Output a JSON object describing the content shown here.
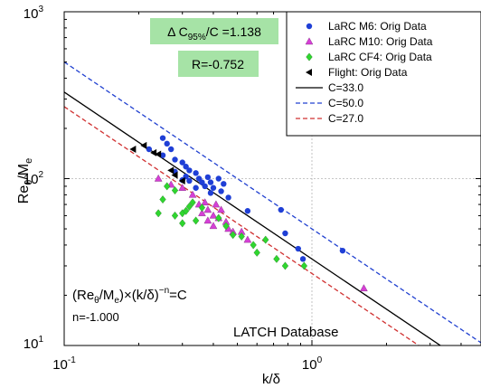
{
  "chart_data": {
    "type": "scatter",
    "xlabel": "k/δ",
    "ylabel_main": "Re",
    "ylabel_sub1": "θ",
    "ylabel_mid": "/M",
    "ylabel_sub2": "e",
    "xscale": "log",
    "yscale": "log",
    "xlim": [
      0.1,
      5.0
    ],
    "ylim": [
      10,
      1000
    ],
    "grid": true,
    "legend_position": "top-right",
    "x_ticks": [
      {
        "base": "10",
        "exp": "-1",
        "value": 0.1
      },
      {
        "base": "10",
        "exp": "0",
        "value": 1
      }
    ],
    "y_ticks": [
      {
        "base": "10",
        "exp": "1",
        "value": 10
      },
      {
        "base": "10",
        "exp": "2",
        "value": 100
      },
      {
        "base": "10",
        "exp": "3",
        "value": 1000
      }
    ],
    "annotations": {
      "delta_c": {
        "prefix": "Δ C",
        "sub": "95%",
        "suffix": "/C =1.138",
        "background": "#a6e3a6"
      },
      "r_value": {
        "text": "R=-0.752",
        "background": "#a6e3a6"
      },
      "formula": {
        "p1": "(Re",
        "s1": "θ",
        "p2": "/M",
        "s2": "e",
        "p3": ")×(k/δ)",
        "sup": "−n",
        "p4": "=C"
      },
      "n_value": "n=-1.000",
      "database": "LATCH Database"
    },
    "series": [
      {
        "name": "LaRC M6: Orig Data",
        "marker": "circle",
        "color": "#1f3fd6",
        "points": [
          [
            0.25,
            175
          ],
          [
            0.26,
            162
          ],
          [
            0.27,
            150
          ],
          [
            0.22,
            150
          ],
          [
            0.25,
            138
          ],
          [
            0.28,
            130
          ],
          [
            0.3,
            125
          ],
          [
            0.31,
            118
          ],
          [
            0.32,
            112
          ],
          [
            0.28,
            110
          ],
          [
            0.31,
            103
          ],
          [
            0.32,
            97
          ],
          [
            0.34,
            108
          ],
          [
            0.35,
            100
          ],
          [
            0.36,
            95
          ],
          [
            0.38,
            102
          ],
          [
            0.37,
            90
          ],
          [
            0.39,
            95
          ],
          [
            0.4,
            88
          ],
          [
            0.42,
            100
          ],
          [
            0.44,
            93
          ],
          [
            0.39,
            82
          ],
          [
            0.43,
            84
          ],
          [
            0.46,
            77
          ],
          [
            0.55,
            64
          ],
          [
            0.75,
            65
          ],
          [
            0.78,
            47
          ],
          [
            0.88,
            38
          ],
          [
            0.92,
            33
          ],
          [
            1.33,
            37
          ],
          [
            0.3,
            98
          ],
          [
            0.34,
            88
          ]
        ]
      },
      {
        "name": "LaRC M10: Orig Data",
        "marker": "triangle-up",
        "color": "#d63fd6",
        "points": [
          [
            0.24,
            100
          ],
          [
            0.27,
            92
          ],
          [
            0.3,
            88
          ],
          [
            0.33,
            80
          ],
          [
            0.35,
            70
          ],
          [
            0.37,
            72
          ],
          [
            0.38,
            65
          ],
          [
            0.4,
            60
          ],
          [
            0.42,
            58
          ],
          [
            0.45,
            55
          ],
          [
            0.46,
            50
          ],
          [
            0.48,
            48
          ],
          [
            0.4,
            52
          ],
          [
            0.36,
            62
          ],
          [
            0.38,
            56
          ],
          [
            0.52,
            48
          ],
          [
            0.55,
            43
          ],
          [
            0.43,
            65
          ],
          [
            0.41,
            70
          ],
          [
            1.62,
            22
          ]
        ]
      },
      {
        "name": "LaRC CF4: Orig Data",
        "marker": "diamond",
        "color": "#2fd62f",
        "points": [
          [
            0.26,
            90
          ],
          [
            0.28,
            85
          ],
          [
            0.25,
            75
          ],
          [
            0.24,
            62
          ],
          [
            0.28,
            60
          ],
          [
            0.3,
            62
          ],
          [
            0.31,
            64
          ],
          [
            0.32,
            68
          ],
          [
            0.33,
            72
          ],
          [
            0.34,
            56
          ],
          [
            0.3,
            54
          ],
          [
            0.42,
            58
          ],
          [
            0.45,
            52
          ],
          [
            0.48,
            46
          ],
          [
            0.52,
            45
          ],
          [
            0.58,
            40
          ],
          [
            0.6,
            36
          ],
          [
            0.65,
            43
          ],
          [
            0.72,
            33
          ],
          [
            0.78,
            30
          ],
          [
            0.93,
            30
          ],
          [
            0.36,
            67
          ]
        ]
      },
      {
        "name": "Flight: Orig Data",
        "marker": "triangle-left",
        "color": "#000000",
        "points": [
          [
            0.19,
            150
          ],
          [
            0.21,
            158
          ],
          [
            0.23,
            143
          ],
          [
            0.24,
            140
          ],
          [
            0.28,
            105
          ],
          [
            0.3,
            97
          ],
          [
            0.27,
            112
          ]
        ]
      },
      {
        "name": "C=33.0",
        "type": "line",
        "C": 33.0,
        "style": "solid",
        "color": "#000000"
      },
      {
        "name": "C=50.0",
        "type": "line",
        "C": 50.0,
        "style": "dashed",
        "color": "#2040d0"
      },
      {
        "name": "C=27.0",
        "type": "line",
        "C": 27.0,
        "style": "dashed",
        "color": "#d03030"
      }
    ]
  }
}
